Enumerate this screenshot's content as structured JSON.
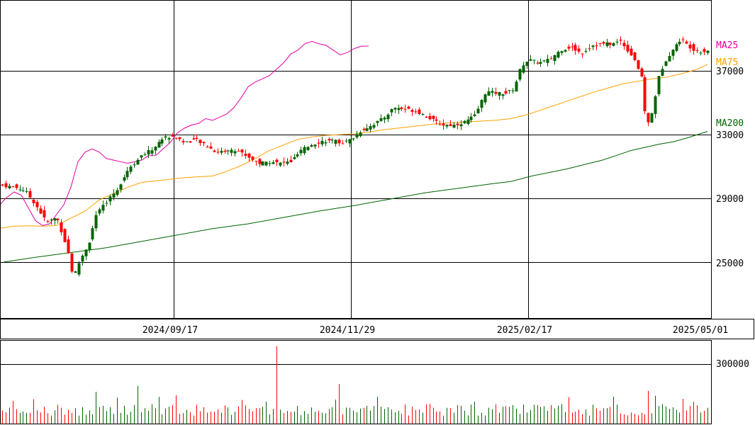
{
  "chart_data": [
    {
      "type": "candlestick",
      "title": "",
      "x_ticks": [
        "2024/09/17",
        "2024/11/29",
        "2025/02/17",
        "2025/05/01"
      ],
      "y_ticks": [
        "37000",
        "33000",
        "29000",
        "25000"
      ],
      "ylim": [
        22900,
        38950
      ],
      "grid": true,
      "colors": {
        "up": "#006400",
        "down": "#ff0000",
        "grid": "#000000"
      },
      "ma": [
        {
          "name": "MA25",
          "color": "#e000a0",
          "values": [
            [
              0,
              28600
            ],
            [
              8,
              29000
            ],
            [
              20,
              29400
            ],
            [
              30,
              29200
            ],
            [
              40,
              28400
            ],
            [
              50,
              27600
            ],
            [
              60,
              27300
            ],
            [
              70,
              27400
            ],
            [
              80,
              28000
            ],
            [
              90,
              28600
            ],
            [
              100,
              29700
            ],
            [
              110,
              31300
            ],
            [
              120,
              31900
            ],
            [
              130,
              32100
            ],
            [
              140,
              31900
            ],
            [
              150,
              31500
            ],
            [
              160,
              31400
            ],
            [
              170,
              31300
            ],
            [
              180,
              31200
            ],
            [
              190,
              31300
            ],
            [
              200,
              31400
            ],
            [
              210,
              31700
            ],
            [
              220,
              31700
            ],
            [
              230,
              32100
            ],
            [
              240,
              32500
            ],
            [
              250,
              33100
            ],
            [
              260,
              33400
            ],
            [
              270,
              33600
            ],
            [
              280,
              33700
            ],
            [
              290,
              34000
            ],
            [
              300,
              33900
            ],
            [
              310,
              34100
            ],
            [
              320,
              34300
            ],
            [
              330,
              34700
            ],
            [
              340,
              35300
            ],
            [
              350,
              36000
            ],
            [
              360,
              36300
            ],
            [
              370,
              36500
            ],
            [
              380,
              36700
            ],
            [
              390,
              37100
            ],
            [
              400,
              37500
            ],
            [
              410,
              38050
            ],
            [
              420,
              38300
            ],
            [
              430,
              38700
            ],
            [
              440,
              38850
            ],
            [
              450,
              38700
            ],
            [
              460,
              38600
            ],
            [
              470,
              38300
            ],
            [
              480,
              38000
            ],
            [
              490,
              38150
            ],
            [
              500,
              38400
            ],
            [
              510,
              38550
            ],
            [
              520,
              38550
            ]
          ]
        },
        {
          "name": "MA75",
          "color": "#ffa000",
          "values": [
            [
              0,
              27120
            ],
            [
              20,
              27250
            ],
            [
              40,
              27280
            ],
            [
              60,
              27250
            ],
            [
              80,
              27300
            ],
            [
              100,
              27750
            ],
            [
              120,
              28200
            ],
            [
              140,
              28900
            ],
            [
              160,
              29300
            ],
            [
              180,
              29700
            ],
            [
              200,
              30000
            ],
            [
              220,
              30100
            ],
            [
              240,
              30200
            ],
            [
              260,
              30300
            ],
            [
              280,
              30350
            ],
            [
              300,
              30400
            ],
            [
              320,
              30700
            ],
            [
              340,
              31050
            ],
            [
              360,
              31500
            ],
            [
              380,
              32000
            ],
            [
              400,
              32350
            ],
            [
              420,
              32700
            ],
            [
              440,
              32850
            ],
            [
              460,
              32950
            ],
            [
              480,
              33000
            ],
            [
              500,
              33050
            ],
            [
              520,
              33150
            ],
            [
              540,
              33300
            ],
            [
              560,
              33400
            ],
            [
              580,
              33500
            ],
            [
              600,
              33600
            ],
            [
              620,
              33700
            ],
            [
              640,
              33750
            ],
            [
              660,
              33800
            ],
            [
              680,
              33850
            ],
            [
              700,
              33900
            ],
            [
              720,
              34000
            ],
            [
              740,
              34200
            ],
            [
              760,
              34500
            ],
            [
              780,
              34800
            ],
            [
              800,
              35100
            ],
            [
              820,
              35400
            ],
            [
              840,
              35700
            ],
            [
              860,
              35950
            ],
            [
              880,
              36200
            ],
            [
              900,
              36350
            ],
            [
              920,
              36500
            ],
            [
              940,
              36600
            ],
            [
              960,
              36800
            ],
            [
              980,
              37050
            ],
            [
              998,
              37400
            ]
          ]
        },
        {
          "name": "MA200",
          "color": "#006400",
          "values": [
            [
              5,
              25000
            ],
            [
              50,
              25300
            ],
            [
              100,
              25600
            ],
            [
              150,
              25900
            ],
            [
              200,
              26300
            ],
            [
              250,
              26700
            ],
            [
              300,
              27100
            ],
            [
              350,
              27400
            ],
            [
              400,
              27800
            ],
            [
              450,
              28200
            ],
            [
              500,
              28550
            ],
            [
              550,
              28950
            ],
            [
              600,
              29350
            ],
            [
              650,
              29650
            ],
            [
              700,
              29950
            ],
            [
              720,
              30050
            ],
            [
              750,
              30400
            ],
            [
              800,
              30850
            ],
            [
              850,
              31400
            ],
            [
              870,
              31700
            ],
            [
              890,
              32000
            ],
            [
              910,
              32200
            ],
            [
              930,
              32400
            ],
            [
              950,
              32550
            ],
            [
              970,
              32800
            ],
            [
              998,
              33200
            ]
          ]
        }
      ]
    },
    {
      "type": "bar",
      "title": "",
      "y_ticks": [
        "300000"
      ],
      "ylim": [
        0,
        450000
      ],
      "grid": true
    }
  ]
}
